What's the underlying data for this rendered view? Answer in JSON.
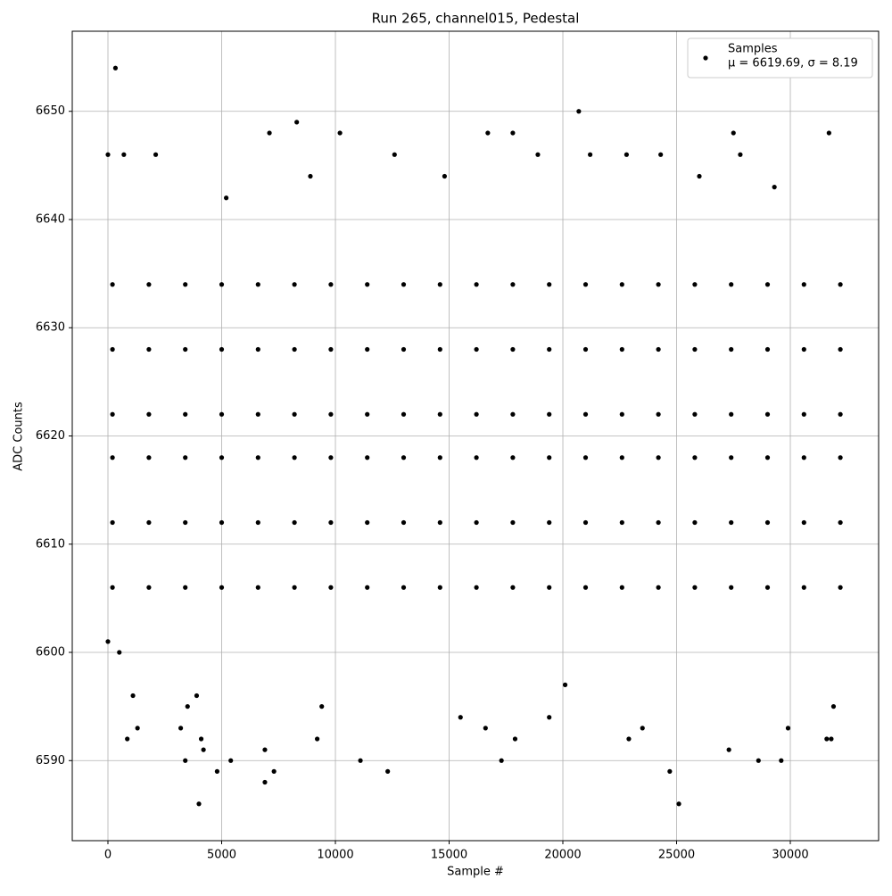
{
  "chart_data": {
    "type": "scatter",
    "title": "Run 265, channel015, Pedestal",
    "x_label": "Sample #",
    "y_label": "ADC Counts",
    "xlim": [
      -1569,
      33882
    ],
    "ylim": [
      6582.6,
      6657.4
    ],
    "xticks": [
      0,
      5000,
      10000,
      15000,
      20000,
      25000,
      30000
    ],
    "yticks": [
      6590,
      6600,
      6610,
      6620,
      6630,
      6640,
      6650
    ],
    "grid": true,
    "legend_position": "upper right",
    "stats_label": "μ = 6619.69, σ = 8.19",
    "series": [
      {
        "name": "Samples",
        "color": "#000000",
        "x": [
          0,
          0,
          330,
          700,
          850,
          1300,
          2100,
          3400,
          3500,
          3200,
          4000,
          4100,
          4200,
          4800,
          5400,
          6900,
          6900,
          7300,
          7100,
          8300,
          9200,
          10200,
          11100,
          12300,
          12600,
          16700,
          17300,
          17800,
          17900,
          20700,
          21200,
          22800,
          22900,
          24700,
          25100,
          27300,
          27500,
          27800,
          28600,
          29600,
          31700,
          31600,
          31800,
          19400,
          15500,
          16600,
          26000,
          29300,
          8900,
          14800,
          24300,
          5200,
          500,
          1100,
          3900,
          9400,
          29900,
          20100,
          31900,
          23500,
          18900,
          200,
          200,
          200,
          200,
          200,
          200,
          1800,
          1800,
          1800,
          1800,
          1800,
          1800,
          3400,
          3400,
          3400,
          3400,
          3400,
          3400,
          5000,
          5000,
          5000,
          5000,
          5000,
          5000,
          6600,
          6600,
          6600,
          6600,
          6600,
          6600,
          8200,
          8200,
          8200,
          8200,
          8200,
          8200,
          9800,
          9800,
          9800,
          9800,
          9800,
          9800,
          11400,
          11400,
          11400,
          11400,
          11400,
          11400,
          13000,
          13000,
          13000,
          13000,
          13000,
          13000,
          14600,
          14600,
          14600,
          14600,
          14600,
          14600,
          16200,
          16200,
          16200,
          16200,
          16200,
          16200,
          17800,
          17800,
          17800,
          17800,
          17800,
          17800,
          19400,
          19400,
          19400,
          19400,
          19400,
          19400,
          21000,
          21000,
          21000,
          21000,
          21000,
          21000,
          22600,
          22600,
          22600,
          22600,
          22600,
          22600,
          24200,
          24200,
          24200,
          24200,
          24200,
          24200,
          25800,
          25800,
          25800,
          25800,
          25800,
          25800,
          27400,
          27400,
          27400,
          27400,
          27400,
          27400,
          29000,
          29000,
          29000,
          29000,
          29000,
          29000,
          30600,
          30600,
          30600,
          30600,
          30600,
          30600,
          32200,
          32200,
          32200,
          32200,
          32200,
          32200
        ],
        "values": [
          6646,
          6601,
          6654,
          6646,
          6592,
          6593,
          6646,
          6590,
          6595,
          6593,
          6586,
          6592,
          6591,
          6589,
          6590,
          6588,
          6591,
          6589,
          6648,
          6649,
          6592,
          6648,
          6590,
          6589,
          6646,
          6648,
          6590,
          6648,
          6592,
          6650,
          6646,
          6646,
          6592,
          6589,
          6586,
          6591,
          6648,
          6646,
          6590,
          6590,
          6648,
          6592,
          6592,
          6594,
          6594,
          6593,
          6644,
          6643,
          6644,
          6644,
          6646,
          6642,
          6600,
          6596,
          6596,
          6595,
          6593,
          6597,
          6595,
          6593,
          6646,
          6606,
          6612,
          6618,
          6622,
          6628,
          6634,
          6606,
          6612,
          6618,
          6622,
          6628,
          6634,
          6606,
          6612,
          6618,
          6622,
          6628,
          6634,
          6606,
          6612,
          6618,
          6622,
          6628,
          6634,
          6606,
          6612,
          6618,
          6622,
          6628,
          6634,
          6606,
          6612,
          6618,
          6622,
          6628,
          6634,
          6606,
          6612,
          6618,
          6622,
          6628,
          6634,
          6606,
          6612,
          6618,
          6622,
          6628,
          6634,
          6606,
          6612,
          6618,
          6622,
          6628,
          6634,
          6606,
          6612,
          6618,
          6622,
          6628,
          6634,
          6606,
          6612,
          6618,
          6622,
          6628,
          6634,
          6606,
          6612,
          6618,
          6622,
          6628,
          6634,
          6606,
          6612,
          6618,
          6622,
          6628,
          6634,
          6606,
          6612,
          6618,
          6622,
          6628,
          6634,
          6606,
          6612,
          6618,
          6622,
          6628,
          6634,
          6606,
          6612,
          6618,
          6622,
          6628,
          6634,
          6606,
          6612,
          6618,
          6622,
          6628,
          6634,
          6606,
          6612,
          6618,
          6622,
          6628,
          6634,
          6606,
          6612,
          6618,
          6622,
          6628,
          6634,
          6606,
          6612,
          6618,
          6622,
          6628,
          6634,
          6606,
          6612,
          6618,
          6622,
          6628,
          6634
        ]
      }
    ]
  }
}
